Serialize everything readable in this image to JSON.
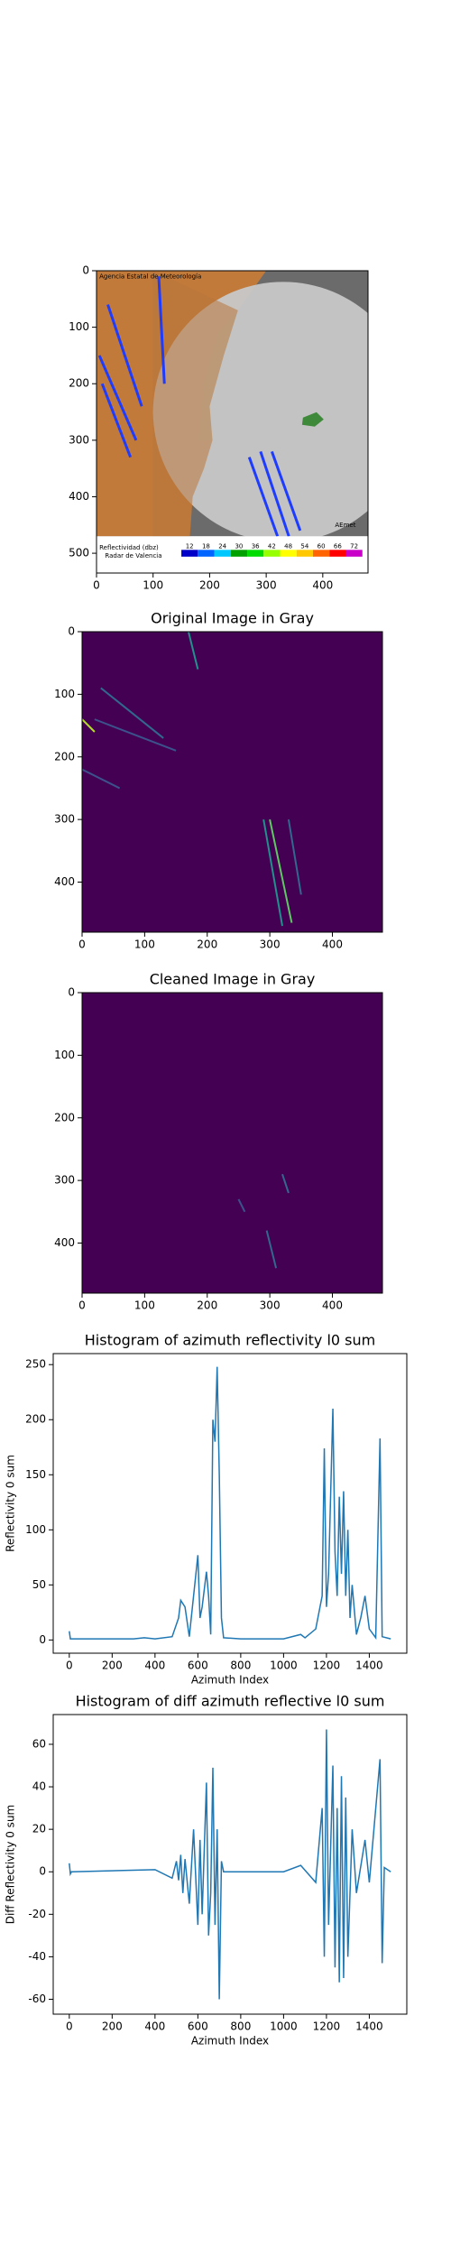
{
  "chart_data": [
    {
      "type": "image",
      "xlim": [
        0,
        480
      ],
      "ylim": [
        535,
        0
      ],
      "xticks": [
        0,
        100,
        200,
        300,
        400
      ],
      "yticks": [
        0,
        100,
        200,
        300,
        400,
        500
      ],
      "annotations": [
        "Agencia Estatal de Meteorología",
        "Reflectividad (dbz)",
        "Radar de Valencia",
        "AEmet"
      ],
      "colorbar_ticks": [
        12,
        18,
        24,
        30,
        36,
        42,
        48,
        54,
        60,
        66,
        72
      ],
      "colorbar_colors": [
        "#0000c8",
        "#0064ff",
        "#00c8ff",
        "#00a000",
        "#00dc00",
        "#96ff00",
        "#ffff00",
        "#ffc800",
        "#ff6400",
        "#ff0000",
        "#c800c8"
      ]
    },
    {
      "type": "image",
      "title": "Original Image in Gray",
      "xlim": [
        0,
        480
      ],
      "ylim": [
        480,
        0
      ],
      "xticks": [
        0,
        100,
        200,
        300,
        400
      ],
      "yticks": [
        0,
        100,
        200,
        300,
        400
      ]
    },
    {
      "type": "image",
      "title": "Cleaned Image in Gray",
      "xlim": [
        0,
        480
      ],
      "ylim": [
        480,
        0
      ],
      "xticks": [
        0,
        100,
        200,
        300,
        400
      ],
      "yticks": [
        0,
        100,
        200,
        300,
        400
      ]
    },
    {
      "type": "line",
      "title": "Histogram of azimuth reflectivity l0 sum",
      "x_label": "Azimuth Index",
      "y_label": "Reflectivity 0 sum",
      "color": "#1f77b4",
      "xlim": [
        -75,
        1575
      ],
      "ylim": [
        -12,
        260
      ],
      "xticks": [
        0,
        200,
        400,
        600,
        800,
        1000,
        1200,
        1400
      ],
      "yticks": [
        0,
        50,
        100,
        150,
        200,
        250
      ],
      "x": [
        0,
        5,
        10,
        300,
        350,
        400,
        480,
        510,
        520,
        540,
        560,
        580,
        600,
        610,
        620,
        640,
        650,
        660,
        670,
        680,
        690,
        700,
        710,
        720,
        800,
        1000,
        1080,
        1100,
        1150,
        1180,
        1190,
        1200,
        1210,
        1230,
        1240,
        1250,
        1260,
        1270,
        1280,
        1290,
        1300,
        1310,
        1320,
        1340,
        1360,
        1380,
        1400,
        1430,
        1450,
        1460,
        1500
      ],
      "values": [
        8,
        1,
        1,
        1,
        2,
        1,
        3,
        20,
        36,
        30,
        3,
        40,
        77,
        20,
        30,
        62,
        40,
        5,
        200,
        180,
        248,
        150,
        20,
        2,
        1,
        1,
        5,
        2,
        10,
        40,
        174,
        30,
        60,
        210,
        80,
        40,
        130,
        60,
        135,
        40,
        100,
        20,
        50,
        5,
        20,
        40,
        10,
        2,
        183,
        3,
        1
      ]
    },
    {
      "type": "line",
      "title": "Histogram of diff azimuth reflective l0 sum",
      "x_label": "Azimuth Index",
      "y_label": "Diff Reflectivity 0 sum",
      "color": "#1f77b4",
      "xlim": [
        -75,
        1575
      ],
      "ylim": [
        -67,
        74
      ],
      "xticks": [
        0,
        200,
        400,
        600,
        800,
        1000,
        1200,
        1400
      ],
      "yticks": [
        -60,
        -40,
        -20,
        0,
        20,
        40,
        60
      ],
      "x": [
        0,
        5,
        10,
        400,
        480,
        500,
        510,
        520,
        530,
        540,
        560,
        580,
        600,
        610,
        620,
        640,
        650,
        660,
        670,
        680,
        690,
        700,
        710,
        720,
        1000,
        1080,
        1150,
        1180,
        1190,
        1200,
        1210,
        1230,
        1240,
        1250,
        1260,
        1270,
        1280,
        1290,
        1300,
        1320,
        1340,
        1380,
        1400,
        1450,
        1460,
        1470,
        1500
      ],
      "values": [
        4,
        -1,
        0,
        1,
        -3,
        5,
        -4,
        8,
        -10,
        6,
        -15,
        20,
        -25,
        15,
        -20,
        42,
        -30,
        -10,
        49,
        -25,
        20,
        -60,
        5,
        0,
        0,
        3,
        -5,
        30,
        -40,
        67,
        -25,
        50,
        -45,
        30,
        -52,
        45,
        -50,
        35,
        -40,
        20,
        -10,
        15,
        -5,
        53,
        -43,
        2,
        0
      ]
    }
  ]
}
